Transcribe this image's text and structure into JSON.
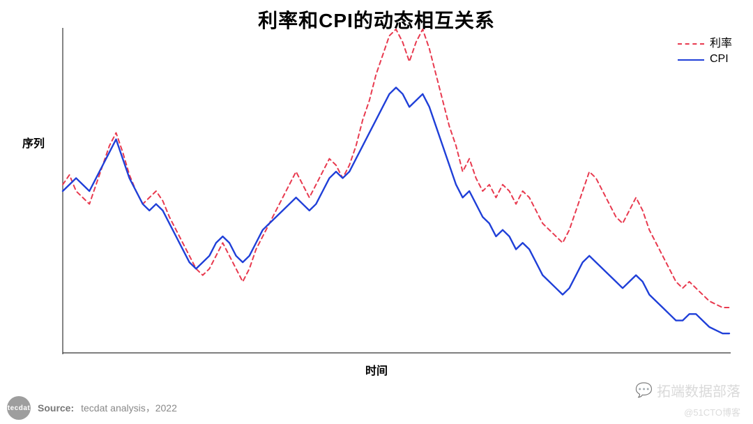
{
  "chart": {
    "type": "line",
    "title": "利率和CPI的动态相互关系",
    "title_fontsize": 28,
    "ylabel": "序列",
    "xlabel": "时间",
    "label_fontsize": 16,
    "xlim": [
      0,
      100
    ],
    "ylim": [
      0,
      100
    ],
    "background_color": "#ffffff",
    "axis_color": "#333333",
    "axis_width": 1.2,
    "series": [
      {
        "name": "利率",
        "color": "#e83a4f",
        "line_width": 2,
        "dash": "6,5",
        "style": "dashed",
        "points": [
          [
            0,
            52
          ],
          [
            1,
            55
          ],
          [
            2,
            50
          ],
          [
            3,
            48
          ],
          [
            4,
            46
          ],
          [
            5,
            52
          ],
          [
            6,
            58
          ],
          [
            7,
            64
          ],
          [
            8,
            68
          ],
          [
            9,
            62
          ],
          [
            10,
            55
          ],
          [
            11,
            50
          ],
          [
            12,
            46
          ],
          [
            13,
            48
          ],
          [
            14,
            50
          ],
          [
            15,
            47
          ],
          [
            16,
            42
          ],
          [
            17,
            38
          ],
          [
            18,
            34
          ],
          [
            19,
            30
          ],
          [
            20,
            26
          ],
          [
            21,
            24
          ],
          [
            22,
            26
          ],
          [
            23,
            30
          ],
          [
            24,
            34
          ],
          [
            25,
            30
          ],
          [
            26,
            26
          ],
          [
            27,
            22
          ],
          [
            28,
            26
          ],
          [
            29,
            32
          ],
          [
            30,
            36
          ],
          [
            31,
            40
          ],
          [
            32,
            44
          ],
          [
            33,
            48
          ],
          [
            34,
            52
          ],
          [
            35,
            56
          ],
          [
            36,
            52
          ],
          [
            37,
            48
          ],
          [
            38,
            52
          ],
          [
            39,
            56
          ],
          [
            40,
            60
          ],
          [
            41,
            58
          ],
          [
            42,
            54
          ],
          [
            43,
            58
          ],
          [
            44,
            64
          ],
          [
            45,
            72
          ],
          [
            46,
            78
          ],
          [
            47,
            86
          ],
          [
            48,
            92
          ],
          [
            49,
            98
          ],
          [
            50,
            100
          ],
          [
            51,
            96
          ],
          [
            52,
            90
          ],
          [
            53,
            96
          ],
          [
            54,
            100
          ],
          [
            55,
            94
          ],
          [
            56,
            86
          ],
          [
            57,
            78
          ],
          [
            58,
            70
          ],
          [
            59,
            64
          ],
          [
            60,
            56
          ],
          [
            61,
            60
          ],
          [
            62,
            54
          ],
          [
            63,
            50
          ],
          [
            64,
            52
          ],
          [
            65,
            48
          ],
          [
            66,
            52
          ],
          [
            67,
            50
          ],
          [
            68,
            46
          ],
          [
            69,
            50
          ],
          [
            70,
            48
          ],
          [
            71,
            44
          ],
          [
            72,
            40
          ],
          [
            73,
            38
          ],
          [
            74,
            36
          ],
          [
            75,
            34
          ],
          [
            76,
            38
          ],
          [
            77,
            44
          ],
          [
            78,
            50
          ],
          [
            79,
            56
          ],
          [
            80,
            54
          ],
          [
            81,
            50
          ],
          [
            82,
            46
          ],
          [
            83,
            42
          ],
          [
            84,
            40
          ],
          [
            85,
            44
          ],
          [
            86,
            48
          ],
          [
            87,
            44
          ],
          [
            88,
            38
          ],
          [
            89,
            34
          ],
          [
            90,
            30
          ],
          [
            91,
            26
          ],
          [
            92,
            22
          ],
          [
            93,
            20
          ],
          [
            94,
            22
          ],
          [
            95,
            20
          ],
          [
            96,
            18
          ],
          [
            97,
            16
          ],
          [
            98,
            15
          ],
          [
            99,
            14
          ],
          [
            100,
            14
          ]
        ]
      },
      {
        "name": "CPI",
        "color": "#1f3fd8",
        "line_width": 2.4,
        "dash": "",
        "style": "solid",
        "points": [
          [
            0,
            50
          ],
          [
            1,
            52
          ],
          [
            2,
            54
          ],
          [
            3,
            52
          ],
          [
            4,
            50
          ],
          [
            5,
            54
          ],
          [
            6,
            58
          ],
          [
            7,
            62
          ],
          [
            8,
            66
          ],
          [
            9,
            60
          ],
          [
            10,
            54
          ],
          [
            11,
            50
          ],
          [
            12,
            46
          ],
          [
            13,
            44
          ],
          [
            14,
            46
          ],
          [
            15,
            44
          ],
          [
            16,
            40
          ],
          [
            17,
            36
          ],
          [
            18,
            32
          ],
          [
            19,
            28
          ],
          [
            20,
            26
          ],
          [
            21,
            28
          ],
          [
            22,
            30
          ],
          [
            23,
            34
          ],
          [
            24,
            36
          ],
          [
            25,
            34
          ],
          [
            26,
            30
          ],
          [
            27,
            28
          ],
          [
            28,
            30
          ],
          [
            29,
            34
          ],
          [
            30,
            38
          ],
          [
            31,
            40
          ],
          [
            32,
            42
          ],
          [
            33,
            44
          ],
          [
            34,
            46
          ],
          [
            35,
            48
          ],
          [
            36,
            46
          ],
          [
            37,
            44
          ],
          [
            38,
            46
          ],
          [
            39,
            50
          ],
          [
            40,
            54
          ],
          [
            41,
            56
          ],
          [
            42,
            54
          ],
          [
            43,
            56
          ],
          [
            44,
            60
          ],
          [
            45,
            64
          ],
          [
            46,
            68
          ],
          [
            47,
            72
          ],
          [
            48,
            76
          ],
          [
            49,
            80
          ],
          [
            50,
            82
          ],
          [
            51,
            80
          ],
          [
            52,
            76
          ],
          [
            53,
            78
          ],
          [
            54,
            80
          ],
          [
            55,
            76
          ],
          [
            56,
            70
          ],
          [
            57,
            64
          ],
          [
            58,
            58
          ],
          [
            59,
            52
          ],
          [
            60,
            48
          ],
          [
            61,
            50
          ],
          [
            62,
            46
          ],
          [
            63,
            42
          ],
          [
            64,
            40
          ],
          [
            65,
            36
          ],
          [
            66,
            38
          ],
          [
            67,
            36
          ],
          [
            68,
            32
          ],
          [
            69,
            34
          ],
          [
            70,
            32
          ],
          [
            71,
            28
          ],
          [
            72,
            24
          ],
          [
            73,
            22
          ],
          [
            74,
            20
          ],
          [
            75,
            18
          ],
          [
            76,
            20
          ],
          [
            77,
            24
          ],
          [
            78,
            28
          ],
          [
            79,
            30
          ],
          [
            80,
            28
          ],
          [
            81,
            26
          ],
          [
            82,
            24
          ],
          [
            83,
            22
          ],
          [
            84,
            20
          ],
          [
            85,
            22
          ],
          [
            86,
            24
          ],
          [
            87,
            22
          ],
          [
            88,
            18
          ],
          [
            89,
            16
          ],
          [
            90,
            14
          ],
          [
            91,
            12
          ],
          [
            92,
            10
          ],
          [
            93,
            10
          ],
          [
            94,
            12
          ],
          [
            95,
            12
          ],
          [
            96,
            10
          ],
          [
            97,
            8
          ],
          [
            98,
            7
          ],
          [
            99,
            6
          ],
          [
            100,
            6
          ]
        ]
      }
    ],
    "legend": {
      "position": "top-right",
      "fontsize": 16
    }
  },
  "footer": {
    "brand": "tecdat",
    "source_label": "Source:",
    "source_text": "tecdat analysis，2022"
  },
  "watermark": {
    "text": "拓端数据部落",
    "icon": "💬",
    "subtext": "@51CTO博客"
  }
}
